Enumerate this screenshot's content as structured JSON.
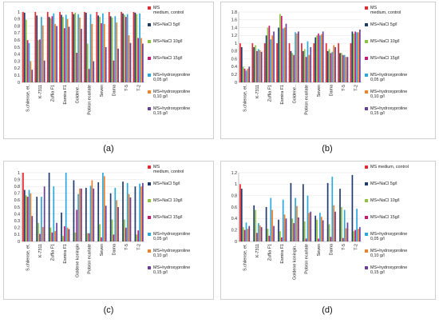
{
  "captions": [
    "(a)",
    "(b)",
    "(c)",
    "(d)"
  ],
  "colors": [
    "#e8262b",
    "#1f3a6d",
    "#8cc43d",
    "#c8197a",
    "#2aa9e0",
    "#f07f2a",
    "#6a3d9a"
  ],
  "chart_data": [
    {
      "id": "a",
      "type": "bar",
      "categories": [
        "S.chilense, et.",
        "K-7311",
        "Zuffia F1",
        "Esmira F1",
        "Goldene..",
        "Potiron ecarlate",
        "Seven",
        "Dama",
        "T-5",
        "T-2"
      ],
      "ylim": [
        0,
        1
      ],
      "yticks": [
        0,
        0.1,
        0.2,
        0.3,
        0.4,
        0.5,
        0.6,
        0.7,
        0.8,
        0.9,
        1
      ],
      "series": [
        {
          "name": "MS\nmedium, control",
          "values": [
            1,
            1,
            1,
            1,
            1,
            1,
            1,
            1,
            1,
            1
          ]
        },
        {
          "name": "MS+NaCl 5g/l",
          "values": [
            0.99,
            0.95,
            0.93,
            0.96,
            0.97,
            0.99,
            0.95,
            0.94,
            0.98,
            0.99
          ]
        },
        {
          "name": "MS+NaCl 10g/l",
          "values": [
            0.89,
            0.6,
            0.91,
            0.93,
            0.99,
            0.55,
            0.93,
            0.92,
            0.96,
            0.97
          ]
        },
        {
          "name": "MS+NaCl 15g/l",
          "values": [
            0.6,
            0.61,
            0.94,
            0.77,
            0.42,
            0.19,
            0.84,
            0.31,
            0.93,
            0.63
          ]
        },
        {
          "name": "MS+hydroxyproline\n0,05 g/l",
          "values": [
            0.56,
            0.93,
            0.98,
            0.96,
            0.97,
            0.97,
            0.98,
            0.94,
            0.97,
            0.98
          ]
        },
        {
          "name": "MS+hydroxyproline\n0,10 g/l",
          "values": [
            0.3,
            0.81,
            0.83,
            0.9,
            0.92,
            0.83,
            0.83,
            0.85,
            0.67,
            0.63
          ]
        },
        {
          "name": "MS+hydroxyproline\n0,15 g/l",
          "values": [
            0.18,
            0.31,
            0.8,
            0.79,
            0.76,
            0.3,
            0.5,
            0.48,
            0.56,
            0.55
          ]
        }
      ]
    },
    {
      "id": "b",
      "type": "bar",
      "categories": [
        "S.chilense, et.",
        "K-7311",
        "Zuffia F1",
        "Esmira F1",
        "Goldene..",
        "Potiron ecarlate",
        "Seven",
        "Dama",
        "T-5",
        "T-2"
      ],
      "ylim": [
        0,
        1.8
      ],
      "yticks": [
        0,
        0.2,
        0.4,
        0.6,
        0.8,
        1,
        1.2,
        1.4,
        1.6,
        1.8
      ],
      "series": [
        {
          "name": "MS\nmedium, control",
          "values": [
            1,
            1,
            1,
            1,
            1,
            1,
            1,
            1,
            1,
            1
          ]
        },
        {
          "name": "MS+NaCl 5g/l",
          "values": [
            0.9,
            0.9,
            1.2,
            1.4,
            0.8,
            0.8,
            1.15,
            0.8,
            0.75,
            1.3
          ]
        },
        {
          "name": "MS+NaCl 10g/l",
          "values": [
            0.4,
            0.95,
            1.4,
            1.75,
            0.75,
            0.85,
            1.2,
            0.85,
            0.75,
            1.25
          ]
        },
        {
          "name": "MS+NaCl 15g/l",
          "values": [
            0.35,
            0.8,
            1.45,
            1.7,
            0.7,
            0.65,
            1.25,
            0.75,
            0.7,
            1.3
          ]
        },
        {
          "name": "MS+hydroxyproline\n0,05 g/l",
          "values": [
            0.3,
            0.85,
            1.1,
            1.38,
            1.28,
            1.05,
            1.2,
            0.78,
            0.7,
            1.28
          ]
        },
        {
          "name": "MS+hydroxyproline\n0,10 g/l",
          "values": [
            0.35,
            0.82,
            1.2,
            1.4,
            1.25,
            0.7,
            1.23,
            0.95,
            0.65,
            1.28
          ]
        },
        {
          "name": "MS+hydroxyproline\n0,15 g/l",
          "values": [
            0.4,
            0.78,
            1.3,
            1.5,
            1.3,
            0.9,
            1.3,
            0.9,
            0.65,
            1.35
          ]
        }
      ]
    },
    {
      "id": "c",
      "type": "bar",
      "categories": [
        "S.chilense, et.",
        "K-7311",
        "Zuffia F1",
        "Esmira F1",
        "Goldene koningin",
        "Potiron ecarlate",
        "Seven",
        "Dama",
        "T-5",
        "T-2"
      ],
      "ylim": [
        0,
        1
      ],
      "yticks": [
        0,
        0.1,
        0.2,
        0.3,
        0.4,
        0.5,
        0.6,
        0.7,
        0.8,
        0.9,
        1
      ],
      "series": [
        {
          "name": "MS\nmedium, control",
          "values": [
            1,
            0,
            0,
            0,
            0,
            0,
            0,
            0,
            0,
            0
          ]
        },
        {
          "name": "MS+NaCl 5g/l",
          "values": [
            0.75,
            0.65,
            1,
            0.42,
            0.89,
            0.78,
            0.86,
            0.7,
            0.87,
            0.8
          ]
        },
        {
          "name": "MS+NaCl 10g/l",
          "values": [
            0.67,
            0.27,
            0.2,
            0.08,
            0.13,
            0.12,
            0.25,
            0.32,
            0.32,
            0.1
          ]
        },
        {
          "name": "MS+NaCl 15g/l",
          "values": [
            0.65,
            0.11,
            0.13,
            0.22,
            0.46,
            0.12,
            0.06,
            0.1,
            0.2,
            0.16
          ]
        },
        {
          "name": "MS+hydroxyproline\n0,05 g/l",
          "values": [
            0.75,
            0.65,
            0.8,
            1,
            0.69,
            0.81,
            1,
            0.78,
            0.85,
            0.84
          ]
        },
        {
          "name": "MS+hydroxyproline\n0,10 g/l",
          "values": [
            0.7,
            0.21,
            0.15,
            0.2,
            0.77,
            0.89,
            0.95,
            0.6,
            0.69,
            0.8
          ]
        },
        {
          "name": "MS+hydroxyproline\n0,15 g/l",
          "values": [
            0.37,
            0.8,
            0.27,
            0.18,
            0.77,
            0.77,
            0.52,
            0.5,
            0.64,
            0.85
          ]
        }
      ]
    },
    {
      "id": "d",
      "type": "bar",
      "categories": [
        "S.chilense, et.",
        "K-7311",
        "Zuffia F1",
        "Esmira F1",
        "Goldene koningin..",
        "Potiron ecarlate",
        "Seven",
        "Dama",
        "T-5",
        "T-2"
      ],
      "ylim": [
        0,
        1.2
      ],
      "yticks": [
        0,
        0.2,
        0.4,
        0.6,
        0.8,
        1,
        1.2
      ],
      "series": [
        {
          "name": "MS medium, control",
          "values": [
            1,
            0,
            0,
            0,
            0,
            0,
            0,
            0,
            0,
            0
          ]
        },
        {
          "name": "MS+NaCl 5g/l",
          "values": [
            0.92,
            0.63,
            0.6,
            0.38,
            1.02,
            1.0,
            0.45,
            1.02,
            0.92,
            1.16
          ]
        },
        {
          "name": "MS+NaCl 10g/l",
          "values": [
            0.25,
            0.55,
            0.22,
            0.18,
            0.4,
            0.35,
            0.38,
            0.3,
            0.6,
            0.18
          ]
        },
        {
          "name": "MS+NaCl 15g/l",
          "values": [
            0.2,
            0.15,
            0.1,
            0.07,
            0.32,
            0.05,
            0.05,
            0.08,
            0.06,
            0.2
          ]
        },
        {
          "name": "MS+hydroxyproline\n0,05 g/l",
          "values": [
            0.33,
            0.32,
            0.76,
            0.73,
            0.76,
            0.8,
            0.5,
            1.13,
            0.55,
            0.57
          ]
        },
        {
          "name": "MS+hydroxyproline\n0,10 g/l",
          "values": [
            0.22,
            0.28,
            0.55,
            0.47,
            0.62,
            0.5,
            0.43,
            0.63,
            0.23,
            0.22
          ]
        },
        {
          "name": "MS+hydroxyproline\n0,15 g/l",
          "values": [
            0.27,
            0.25,
            0.27,
            0.4,
            0.42,
            0.52,
            0.37,
            0.52,
            0.33,
            0.25
          ]
        }
      ]
    }
  ]
}
